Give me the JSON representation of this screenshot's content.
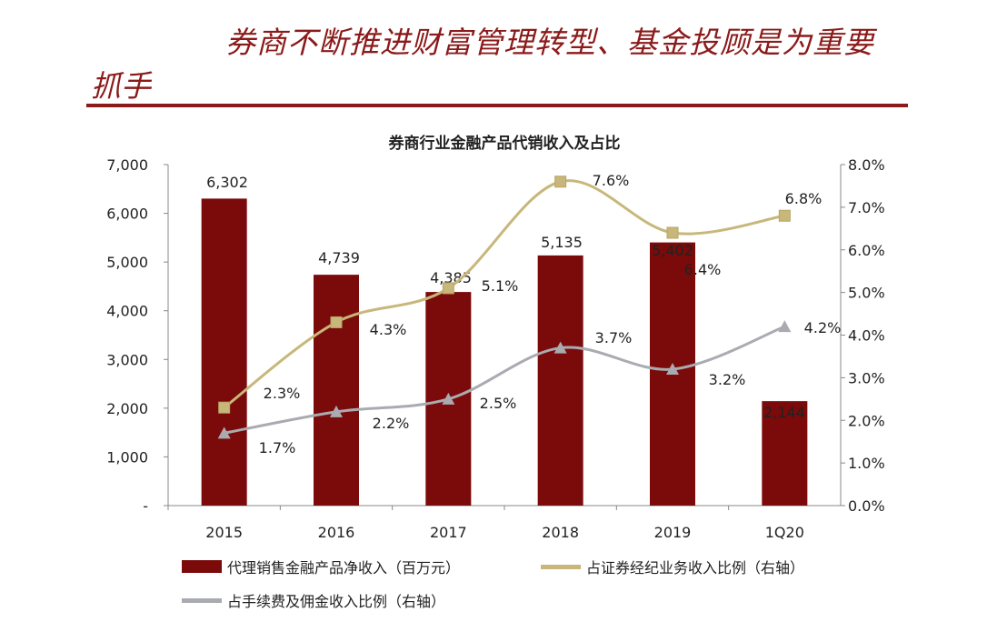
{
  "header": {
    "title_line1": "券商不断推进财富管理转型、基金投顾是为重要",
    "title_line2": "抓手"
  },
  "chart_data": {
    "type": "bar+line",
    "title": "券商行业金融产品代销收入及占比",
    "categories": [
      "2015",
      "2016",
      "2017",
      "2018",
      "2019",
      "1Q20"
    ],
    "left_axis": {
      "range": [
        0,
        7000
      ],
      "ticks": [
        "-",
        "1,000",
        "2,000",
        "3,000",
        "4,000",
        "5,000",
        "6,000",
        "7,000"
      ]
    },
    "right_axis": {
      "range": [
        0,
        8
      ],
      "unit": "%",
      "ticks": [
        "0.0%",
        "1.0%",
        "2.0%",
        "3.0%",
        "4.0%",
        "5.0%",
        "6.0%",
        "7.0%",
        "8.0%"
      ]
    },
    "grid": false,
    "legend_placement": "bottom",
    "series": [
      {
        "name": "代理销售金融产品净收入（百万元）",
        "type": "bar",
        "axis": "left",
        "color": "#7b0a0a",
        "values": [
          6302,
          4739,
          4385,
          5135,
          5402,
          2144
        ],
        "labels": [
          "6,302",
          "4,739",
          "4,385",
          "5,135",
          "5,402",
          "2,144"
        ]
      },
      {
        "name": "占证券经纪业务收入比例（右轴）",
        "type": "line",
        "axis": "right",
        "color": "#c8b77a",
        "values": [
          2.3,
          4.3,
          5.1,
          7.6,
          6.4,
          6.8
        ],
        "labels": [
          "2.3%",
          "4.3%",
          "5.1%",
          "7.6%",
          "6.4%",
          "6.8%"
        ]
      },
      {
        "name": "占手续费及佣金收入比例（右轴）",
        "type": "line",
        "axis": "right",
        "color": "#a9abb0",
        "values": [
          1.7,
          2.2,
          2.5,
          3.7,
          3.2,
          4.2
        ],
        "labels": [
          "1.7%",
          "2.2%",
          "2.5%",
          "3.7%",
          "3.2%",
          "4.2%"
        ]
      }
    ]
  }
}
